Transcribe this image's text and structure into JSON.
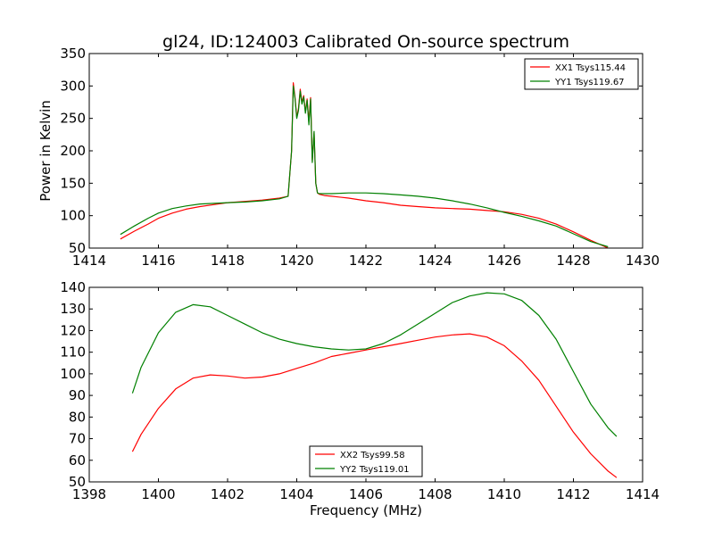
{
  "figure": {
    "title": "gl24, ID:124003 Calibrated On-source spectrum"
  },
  "chart_data": [
    {
      "type": "line",
      "title": "gl24, ID:124003 Calibrated On-source spectrum",
      "xlabel": "",
      "ylabel": "Power in Kelvin",
      "xlim": [
        1414,
        1430
      ],
      "ylim": [
        50,
        350
      ],
      "xticks": [
        1414,
        1416,
        1418,
        1420,
        1422,
        1424,
        1426,
        1428,
        1430
      ],
      "yticks": [
        50,
        100,
        150,
        200,
        250,
        300,
        350
      ],
      "legend_position": "top-right",
      "grid": false,
      "series": [
        {
          "name": "XX1 Tsys115.44",
          "color": "#ff0000",
          "x": [
            1414.9,
            1415.3,
            1415.7,
            1416.0,
            1416.4,
            1416.8,
            1417.2,
            1417.6,
            1418.0,
            1418.5,
            1419.0,
            1419.5,
            1419.75,
            1419.85,
            1419.9,
            1419.95,
            1420.0,
            1420.05,
            1420.1,
            1420.15,
            1420.2,
            1420.25,
            1420.3,
            1420.35,
            1420.4,
            1420.45,
            1420.5,
            1420.55,
            1420.6,
            1420.65,
            1420.8,
            1421.0,
            1421.5,
            1422.0,
            1422.5,
            1423.0,
            1423.5,
            1424.0,
            1424.5,
            1425.0,
            1425.5,
            1426.0,
            1426.5,
            1427.0,
            1427.5,
            1428.0,
            1428.5,
            1429.0
          ],
          "y": [
            64,
            76,
            87,
            96,
            104,
            110,
            114,
            117,
            120,
            122,
            124,
            127,
            130,
            200,
            305,
            282,
            252,
            265,
            295,
            275,
            285,
            260,
            280,
            245,
            282,
            185,
            228,
            150,
            135,
            133,
            131,
            130,
            127,
            123,
            120,
            116,
            114,
            112,
            111,
            110,
            108,
            106,
            102,
            96,
            87,
            75,
            62,
            50
          ]
        },
        {
          "name": "YY1 Tsys119.67",
          "color": "#008000",
          "x": [
            1414.9,
            1415.3,
            1415.7,
            1416.0,
            1416.4,
            1416.8,
            1417.2,
            1417.6,
            1418.0,
            1418.5,
            1419.0,
            1419.5,
            1419.75,
            1419.85,
            1419.9,
            1419.95,
            1420.0,
            1420.05,
            1420.1,
            1420.15,
            1420.2,
            1420.25,
            1420.3,
            1420.35,
            1420.4,
            1420.45,
            1420.5,
            1420.55,
            1420.6,
            1420.65,
            1420.8,
            1421.0,
            1421.5,
            1422.0,
            1422.5,
            1423.0,
            1423.5,
            1424.0,
            1424.5,
            1425.0,
            1425.5,
            1426.0,
            1426.5,
            1427.0,
            1427.5,
            1428.0,
            1428.5,
            1429.0
          ],
          "y": [
            71,
            84,
            96,
            104,
            111,
            115,
            118,
            119,
            120,
            121,
            123,
            126,
            130,
            200,
            300,
            280,
            250,
            262,
            292,
            272,
            283,
            258,
            278,
            240,
            280,
            182,
            230,
            150,
            135,
            134,
            134,
            134,
            135,
            135,
            134,
            132,
            130,
            127,
            123,
            118,
            112,
            105,
            99,
            92,
            84,
            72,
            60,
            52
          ]
        }
      ]
    },
    {
      "type": "line",
      "title": "",
      "xlabel": "Frequency (MHz)",
      "ylabel": "",
      "xlim": [
        1398,
        1414
      ],
      "ylim": [
        50,
        140
      ],
      "xticks": [
        1398,
        1400,
        1402,
        1404,
        1406,
        1408,
        1410,
        1412,
        1414
      ],
      "yticks": [
        50,
        60,
        70,
        80,
        90,
        100,
        110,
        120,
        130,
        140
      ],
      "legend_position": "lower-center",
      "grid": false,
      "series": [
        {
          "name": "XX2 Tsys99.58",
          "color": "#ff0000",
          "x": [
            1399.25,
            1399.5,
            1400.0,
            1400.5,
            1401.0,
            1401.5,
            1402.0,
            1402.5,
            1403.0,
            1403.5,
            1404.0,
            1404.5,
            1405.0,
            1405.5,
            1406.0,
            1406.5,
            1407.0,
            1407.5,
            1408.0,
            1408.5,
            1409.0,
            1409.5,
            1410.0,
            1410.5,
            1411.0,
            1411.5,
            1412.0,
            1412.5,
            1413.0,
            1413.25
          ],
          "y": [
            64,
            72,
            84,
            93,
            98,
            99.5,
            99,
            98,
            98.5,
            100,
            102.5,
            105,
            108,
            109.5,
            111,
            112.5,
            114,
            115.5,
            117,
            118,
            118.5,
            117,
            113,
            106,
            97,
            85,
            73,
            63,
            55,
            52
          ]
        },
        {
          "name": "YY2 Tsys119.01",
          "color": "#008000",
          "x": [
            1399.25,
            1399.5,
            1400.0,
            1400.5,
            1401.0,
            1401.5,
            1402.0,
            1402.5,
            1403.0,
            1403.5,
            1404.0,
            1404.5,
            1405.0,
            1405.5,
            1406.0,
            1406.5,
            1407.0,
            1407.5,
            1408.0,
            1408.5,
            1409.0,
            1409.5,
            1410.0,
            1410.5,
            1411.0,
            1411.5,
            1412.0,
            1412.5,
            1413.0,
            1413.25
          ],
          "y": [
            91,
            103,
            119,
            128.5,
            132,
            131,
            127,
            123,
            119,
            116,
            114,
            112.5,
            111.5,
            111,
            111.5,
            114,
            118,
            123,
            128,
            133,
            136,
            137.5,
            137,
            134,
            127,
            116,
            101,
            86,
            75,
            71
          ]
        }
      ]
    }
  ]
}
